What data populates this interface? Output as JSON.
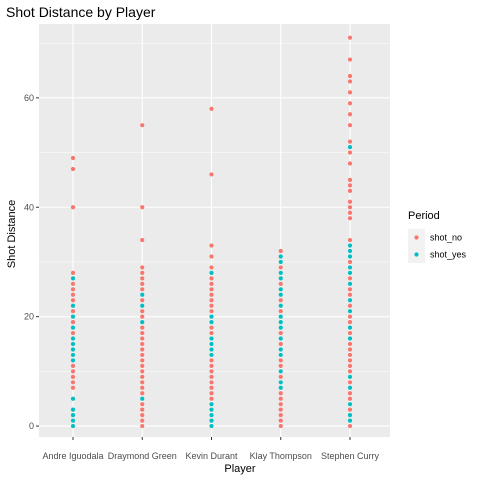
{
  "chart_data": {
    "type": "scatter",
    "title": "Shot Distance by Player",
    "xlabel": "Player",
    "ylabel": "Shot Distance",
    "categories": [
      "Andre Iguodala",
      "Draymond Green",
      "Kevin Durant",
      "Klay Thompson",
      "Stephen Curry"
    ],
    "ylim": [
      -2,
      73.5
    ],
    "yticks": [
      0,
      20,
      40,
      60
    ],
    "grid": true,
    "legend": {
      "title": "Period",
      "placement": "right",
      "entries": [
        {
          "name": "shot_no",
          "color": "#F8766D"
        },
        {
          "name": "shot_yes",
          "color": "#00BFC4"
        }
      ]
    },
    "series": [
      {
        "name": "shot_no",
        "color": "#F8766D",
        "points": [
          [
            "Andre Iguodala",
            49
          ],
          [
            "Andre Iguodala",
            47
          ],
          [
            "Andre Iguodala",
            40
          ],
          [
            "Andre Iguodala",
            28
          ],
          [
            "Andre Iguodala",
            26
          ],
          [
            "Andre Iguodala",
            25
          ],
          [
            "Andre Iguodala",
            24
          ],
          [
            "Andre Iguodala",
            23
          ],
          [
            "Andre Iguodala",
            21
          ],
          [
            "Andre Iguodala",
            19
          ],
          [
            "Andre Iguodala",
            17
          ],
          [
            "Andre Iguodala",
            11
          ],
          [
            "Andre Iguodala",
            10
          ],
          [
            "Andre Iguodala",
            9
          ],
          [
            "Andre Iguodala",
            8
          ],
          [
            "Andre Iguodala",
            7
          ],
          [
            "Draymond Green",
            55
          ],
          [
            "Draymond Green",
            40
          ],
          [
            "Draymond Green",
            34
          ],
          [
            "Draymond Green",
            29
          ],
          [
            "Draymond Green",
            28
          ],
          [
            "Draymond Green",
            27
          ],
          [
            "Draymond Green",
            26
          ],
          [
            "Draymond Green",
            25
          ],
          [
            "Draymond Green",
            23
          ],
          [
            "Draymond Green",
            21
          ],
          [
            "Draymond Green",
            20
          ],
          [
            "Draymond Green",
            18
          ],
          [
            "Draymond Green",
            17
          ],
          [
            "Draymond Green",
            16
          ],
          [
            "Draymond Green",
            15
          ],
          [
            "Draymond Green",
            14
          ],
          [
            "Draymond Green",
            13
          ],
          [
            "Draymond Green",
            12
          ],
          [
            "Draymond Green",
            11
          ],
          [
            "Draymond Green",
            10
          ],
          [
            "Draymond Green",
            9
          ],
          [
            "Draymond Green",
            8
          ],
          [
            "Draymond Green",
            7
          ],
          [
            "Draymond Green",
            6
          ],
          [
            "Draymond Green",
            4
          ],
          [
            "Draymond Green",
            3
          ],
          [
            "Draymond Green",
            2
          ],
          [
            "Draymond Green",
            1
          ],
          [
            "Draymond Green",
            0
          ],
          [
            "Kevin Durant",
            58
          ],
          [
            "Kevin Durant",
            46
          ],
          [
            "Kevin Durant",
            33
          ],
          [
            "Kevin Durant",
            31
          ],
          [
            "Kevin Durant",
            29
          ],
          [
            "Kevin Durant",
            27
          ],
          [
            "Kevin Durant",
            26
          ],
          [
            "Kevin Durant",
            25
          ],
          [
            "Kevin Durant",
            24
          ],
          [
            "Kevin Durant",
            23
          ],
          [
            "Kevin Durant",
            22
          ],
          [
            "Kevin Durant",
            21
          ],
          [
            "Kevin Durant",
            18
          ],
          [
            "Kevin Durant",
            17
          ],
          [
            "Kevin Durant",
            12
          ],
          [
            "Kevin Durant",
            11
          ],
          [
            "Kevin Durant",
            10
          ],
          [
            "Kevin Durant",
            9
          ],
          [
            "Kevin Durant",
            8
          ],
          [
            "Kevin Durant",
            7
          ],
          [
            "Kevin Durant",
            6
          ],
          [
            "Kevin Durant",
            5
          ],
          [
            "Klay Thompson",
            32
          ],
          [
            "Klay Thompson",
            29
          ],
          [
            "Klay Thompson",
            26
          ],
          [
            "Klay Thompson",
            23
          ],
          [
            "Klay Thompson",
            21
          ],
          [
            "Klay Thompson",
            17
          ],
          [
            "Klay Thompson",
            15
          ],
          [
            "Klay Thompson",
            12
          ],
          [
            "Klay Thompson",
            11
          ],
          [
            "Klay Thompson",
            9
          ],
          [
            "Klay Thompson",
            6
          ],
          [
            "Klay Thompson",
            5
          ],
          [
            "Klay Thompson",
            4
          ],
          [
            "Klay Thompson",
            3
          ],
          [
            "Klay Thompson",
            2
          ],
          [
            "Klay Thompson",
            1
          ],
          [
            "Klay Thompson",
            0
          ],
          [
            "Stephen Curry",
            71
          ],
          [
            "Stephen Curry",
            67
          ],
          [
            "Stephen Curry",
            64
          ],
          [
            "Stephen Curry",
            63
          ],
          [
            "Stephen Curry",
            61
          ],
          [
            "Stephen Curry",
            59
          ],
          [
            "Stephen Curry",
            57
          ],
          [
            "Stephen Curry",
            55
          ],
          [
            "Stephen Curry",
            52
          ],
          [
            "Stephen Curry",
            50
          ],
          [
            "Stephen Curry",
            48
          ],
          [
            "Stephen Curry",
            45
          ],
          [
            "Stephen Curry",
            44
          ],
          [
            "Stephen Curry",
            43
          ],
          [
            "Stephen Curry",
            41
          ],
          [
            "Stephen Curry",
            40
          ],
          [
            "Stephen Curry",
            39
          ],
          [
            "Stephen Curry",
            38
          ],
          [
            "Stephen Curry",
            34
          ],
          [
            "Stephen Curry",
            30
          ],
          [
            "Stephen Curry",
            27
          ],
          [
            "Stephen Curry",
            25
          ],
          [
            "Stephen Curry",
            24
          ],
          [
            "Stephen Curry",
            22
          ],
          [
            "Stephen Curry",
            20
          ],
          [
            "Stephen Curry",
            19
          ],
          [
            "Stephen Curry",
            17
          ],
          [
            "Stephen Curry",
            15
          ],
          [
            "Stephen Curry",
            14
          ],
          [
            "Stephen Curry",
            13
          ],
          [
            "Stephen Curry",
            12
          ],
          [
            "Stephen Curry",
            11
          ],
          [
            "Stephen Curry",
            10
          ],
          [
            "Stephen Curry",
            8
          ],
          [
            "Stephen Curry",
            6
          ],
          [
            "Stephen Curry",
            5
          ],
          [
            "Stephen Curry",
            3
          ],
          [
            "Stephen Curry",
            0
          ]
        ]
      },
      {
        "name": "shot_yes",
        "color": "#00BFC4",
        "points": [
          [
            "Andre Iguodala",
            27
          ],
          [
            "Andre Iguodala",
            22
          ],
          [
            "Andre Iguodala",
            20
          ],
          [
            "Andre Iguodala",
            18
          ],
          [
            "Andre Iguodala",
            16
          ],
          [
            "Andre Iguodala",
            15
          ],
          [
            "Andre Iguodala",
            14
          ],
          [
            "Andre Iguodala",
            13
          ],
          [
            "Andre Iguodala",
            12
          ],
          [
            "Andre Iguodala",
            5
          ],
          [
            "Andre Iguodala",
            3
          ],
          [
            "Andre Iguodala",
            2
          ],
          [
            "Andre Iguodala",
            1
          ],
          [
            "Andre Iguodala",
            0
          ],
          [
            "Draymond Green",
            24
          ],
          [
            "Draymond Green",
            22
          ],
          [
            "Draymond Green",
            19
          ],
          [
            "Draymond Green",
            5
          ],
          [
            "Kevin Durant",
            28
          ],
          [
            "Kevin Durant",
            20
          ],
          [
            "Kevin Durant",
            19
          ],
          [
            "Kevin Durant",
            16
          ],
          [
            "Kevin Durant",
            15
          ],
          [
            "Kevin Durant",
            14
          ],
          [
            "Kevin Durant",
            13
          ],
          [
            "Kevin Durant",
            4
          ],
          [
            "Kevin Durant",
            3
          ],
          [
            "Kevin Durant",
            2
          ],
          [
            "Kevin Durant",
            1
          ],
          [
            "Kevin Durant",
            0
          ],
          [
            "Klay Thompson",
            31
          ],
          [
            "Klay Thompson",
            30
          ],
          [
            "Klay Thompson",
            28
          ],
          [
            "Klay Thompson",
            27
          ],
          [
            "Klay Thompson",
            25
          ],
          [
            "Klay Thompson",
            24
          ],
          [
            "Klay Thompson",
            22
          ],
          [
            "Klay Thompson",
            20
          ],
          [
            "Klay Thompson",
            19
          ],
          [
            "Klay Thompson",
            18
          ],
          [
            "Klay Thompson",
            16
          ],
          [
            "Klay Thompson",
            14
          ],
          [
            "Klay Thompson",
            13
          ],
          [
            "Klay Thompson",
            10
          ],
          [
            "Klay Thompson",
            8
          ],
          [
            "Klay Thompson",
            7
          ],
          [
            "Stephen Curry",
            51
          ],
          [
            "Stephen Curry",
            33
          ],
          [
            "Stephen Curry",
            32
          ],
          [
            "Stephen Curry",
            31
          ],
          [
            "Stephen Curry",
            29
          ],
          [
            "Stephen Curry",
            28
          ],
          [
            "Stephen Curry",
            26
          ],
          [
            "Stephen Curry",
            23
          ],
          [
            "Stephen Curry",
            21
          ],
          [
            "Stephen Curry",
            18
          ],
          [
            "Stephen Curry",
            16
          ],
          [
            "Stephen Curry",
            9
          ],
          [
            "Stephen Curry",
            7
          ],
          [
            "Stephen Curry",
            4
          ],
          [
            "Stephen Curry",
            2
          ],
          [
            "Stephen Curry",
            1
          ]
        ]
      }
    ]
  },
  "colors": {
    "panel_background": "#EBEBEB",
    "grid": "#FFFFFF",
    "shot_no": "#F8766D",
    "shot_yes": "#00BFC4"
  }
}
